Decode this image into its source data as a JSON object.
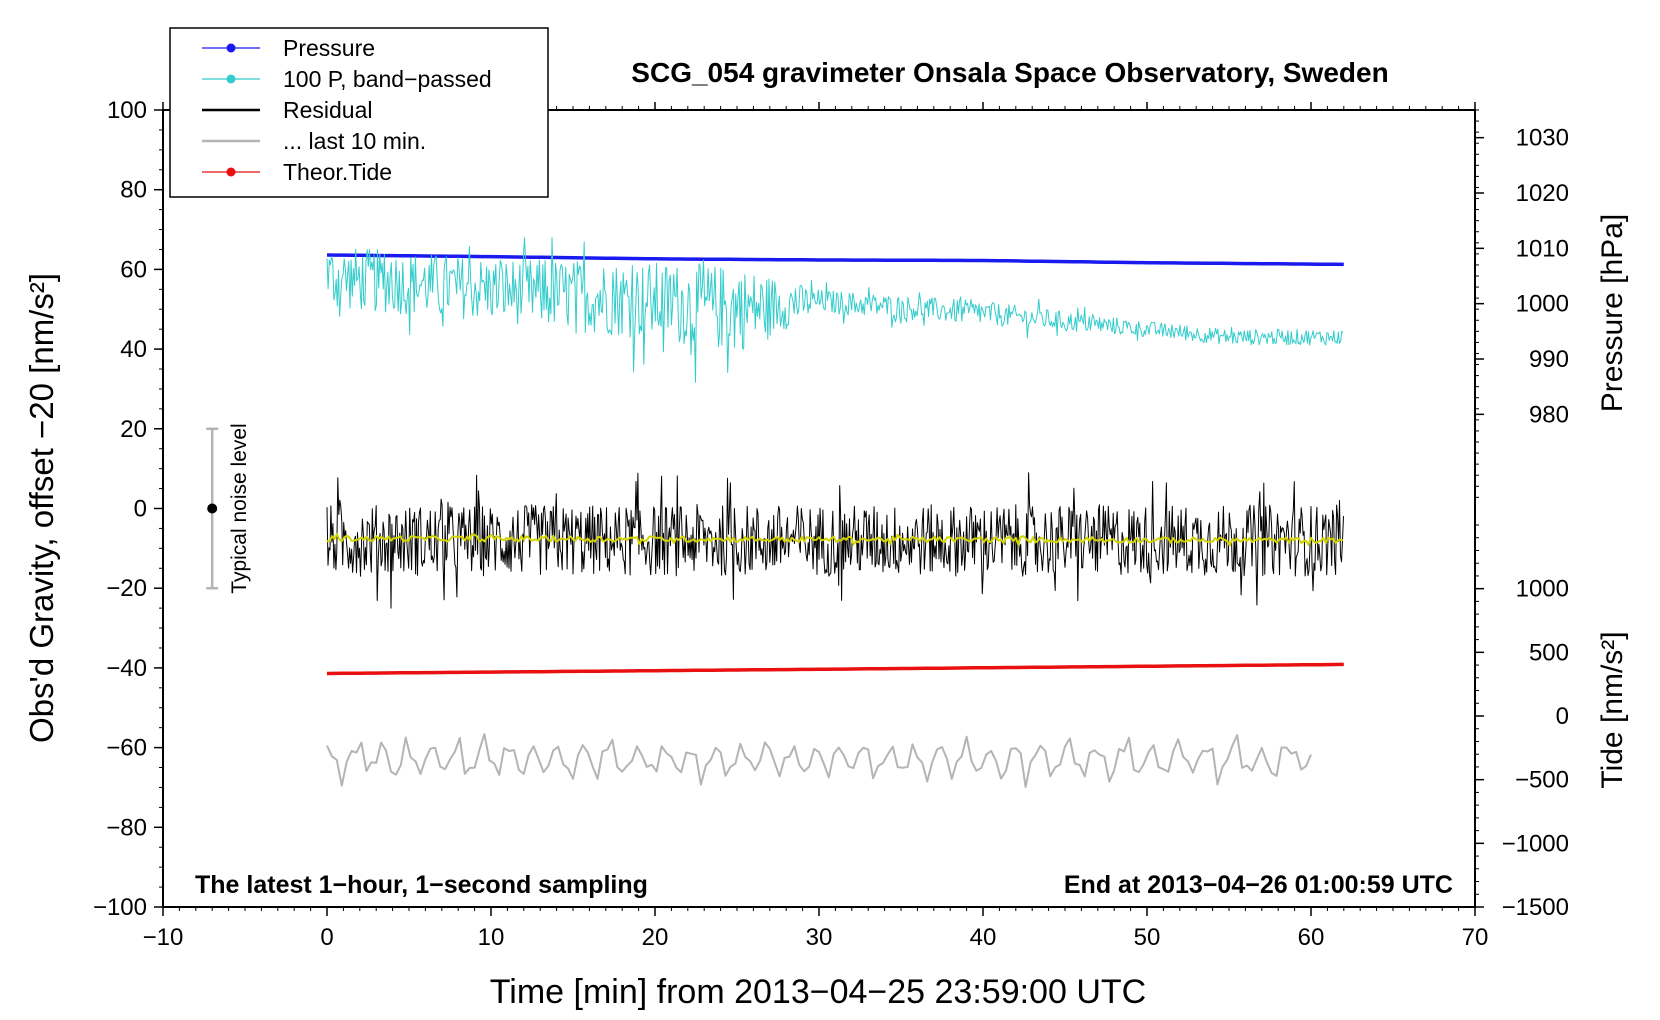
{
  "chart_data": {
    "type": "line",
    "title": "SCG_054 gravimeter Onsala Space Observatory, Sweden",
    "xlabel": "Time [min] from 2013−04−25 23:59:00 UTC",
    "ylabel_left": "Obs'd Gravity, offset −20 [nm/s²]",
    "ylabel_right_pressure": "Pressure [hPa]",
    "ylabel_right_tide": "Tide [nm/s²]",
    "xlim": [
      -10,
      70
    ],
    "ylim": [
      -100,
      100
    ],
    "x_ticks": [
      "−10",
      "0",
      "10",
      "20",
      "30",
      "40",
      "50",
      "60",
      "70"
    ],
    "y_ticks": [
      "100",
      "80",
      "60",
      "40",
      "20",
      "0",
      "−20",
      "−40",
      "−60",
      "−80",
      "−100"
    ],
    "pressure_axis": {
      "range": [
        960,
        1035
      ],
      "ticks": [
        "1030",
        "1020",
        "1010",
        "1000",
        "990",
        "980"
      ]
    },
    "tide_axis": {
      "range": [
        -1500,
        1500
      ],
      "ticks": [
        "1000",
        "500",
        "0",
        "−500",
        "−1000",
        "−1500"
      ]
    },
    "legend": {
      "placement": "top-left",
      "entries": [
        {
          "label": "Pressure",
          "color": "#1a1aee",
          "marker": "dot"
        },
        {
          "label": "100 P, band−passed",
          "color": "#33cccc",
          "marker": "dot"
        },
        {
          "label": "Residual",
          "color": "#000000",
          "marker": "none"
        },
        {
          "label": "... last 10 min.",
          "color": "#b4b4b4",
          "marker": "none"
        },
        {
          "label": "Theor.Tide",
          "color": "#e81010",
          "marker": "dot"
        }
      ]
    },
    "series": [
      {
        "name": "Pressure",
        "axis": "pressure",
        "color": "#1a1aee",
        "x": [
          0,
          10,
          20,
          30,
          40,
          50,
          62
        ],
        "values": [
          1008.8,
          1008.5,
          1008.1,
          1007.9,
          1007.8,
          1007.4,
          1007.1
        ]
      },
      {
        "name": "100 P, band-passed",
        "axis": "gravity",
        "color": "#33cccc",
        "x": [
          0,
          10,
          20,
          25,
          30,
          40,
          50,
          55,
          62
        ],
        "values": [
          58,
          55,
          52,
          50,
          52,
          49,
          45,
          43,
          43
        ],
        "amplitude": [
          8,
          8,
          10,
          11,
          3,
          3,
          2,
          2,
          2
        ]
      },
      {
        "name": "Residual",
        "axis": "gravity",
        "color": "#000000",
        "x": [
          0,
          62
        ],
        "values": [
          -8,
          -8
        ],
        "amplitude": [
          9,
          9
        ]
      },
      {
        "name": "Residual smoothed",
        "axis": "gravity",
        "color": "#d4d400",
        "x": [
          0,
          62
        ],
        "values": [
          -7.5,
          -8
        ]
      },
      {
        "name": "Theor.Tide",
        "axis": "tide",
        "color": "#e81010",
        "x": [
          0,
          31,
          62
        ],
        "values": [
          334,
          368,
          405
        ]
      },
      {
        "name": "... last 10 min.",
        "axis": "gravity",
        "color": "#b4b4b4",
        "x": [
          0,
          60
        ],
        "values": [
          -63,
          -63
        ],
        "amplitude": [
          6,
          6
        ]
      }
    ],
    "noise_marker": {
      "label": "Typical noise level",
      "x": -7,
      "value": 0,
      "range": [
        -20,
        20
      ],
      "color": "#b4b4b4"
    },
    "annotations": [
      {
        "text": "The latest 1−hour, 1−second sampling",
        "position": "bottom-left"
      },
      {
        "text": "End at 2013−04−26 01:00:59 UTC",
        "position": "bottom-right"
      }
    ]
  }
}
